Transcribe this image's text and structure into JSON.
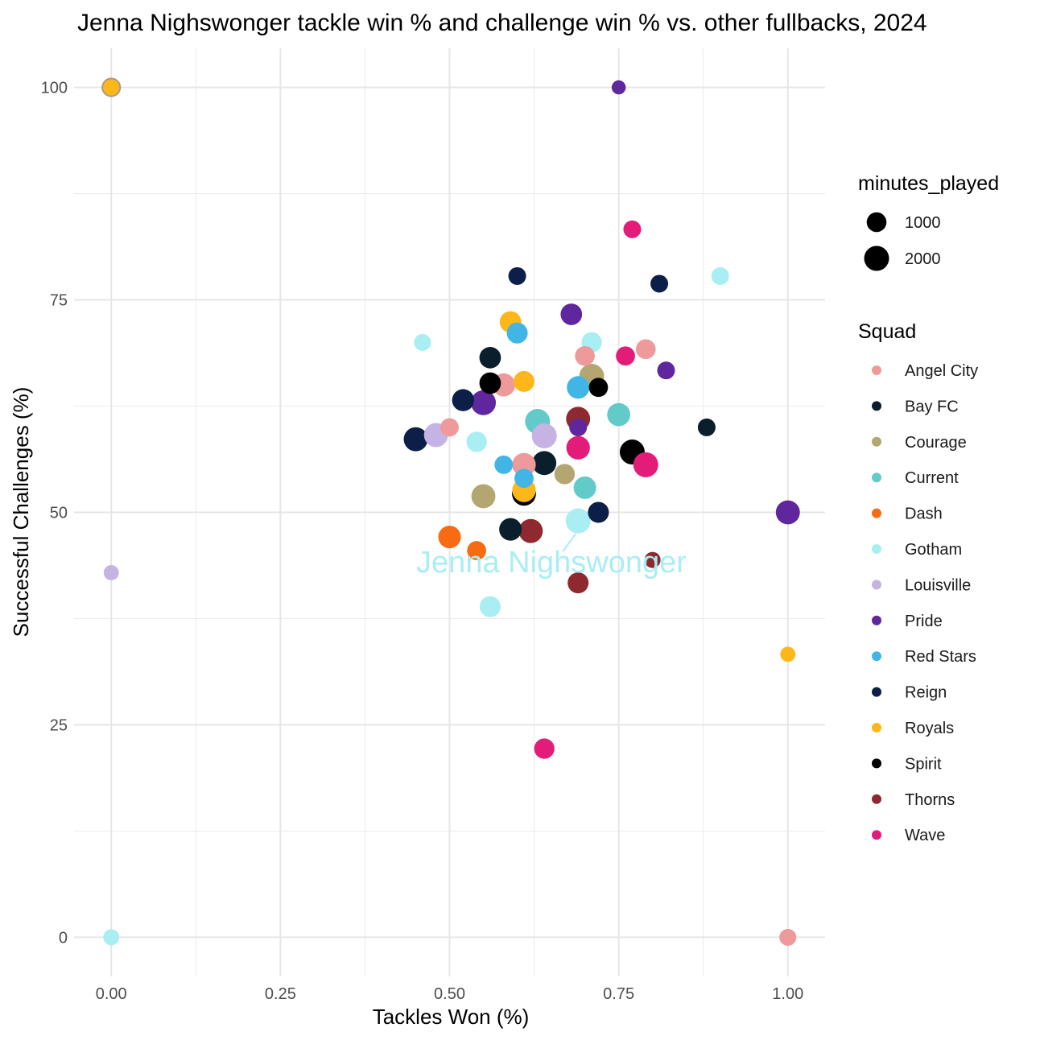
{
  "chart_data": {
    "type": "scatter",
    "title": "Jenna Nighswonger tackle win % and challenge win % vs. other fullbacks, 2024",
    "xlabel": "Tackles Won (%)",
    "ylabel": "Successful Challenges (%)",
    "xlim": [
      -0.055,
      1.055
    ],
    "ylim": [
      -4.6,
      104.6
    ],
    "x_ticks": [
      0.0,
      0.25,
      0.5,
      0.75,
      1.0
    ],
    "x_tick_labels": [
      "0.00",
      "0.25",
      "0.50",
      "0.75",
      "1.00"
    ],
    "y_ticks": [
      0,
      25,
      50,
      75,
      100
    ],
    "y_tick_labels": [
      "0",
      "25",
      "50",
      "75",
      "100"
    ],
    "grid": true,
    "size_legend": {
      "title": "minutes_played",
      "entries": [
        {
          "label": "1000",
          "value": 1000
        },
        {
          "label": "2000",
          "value": 2000
        }
      ]
    },
    "color_legend": {
      "title": "Squad",
      "entries": [
        {
          "label": "Angel City",
          "color": "#EF9A9A"
        },
        {
          "label": "Bay FC",
          "color": "#0A1E2C"
        },
        {
          "label": "Courage",
          "color": "#B4A670"
        },
        {
          "label": "Current",
          "color": "#62CBC9"
        },
        {
          "label": "Dash",
          "color": "#F86B12"
        },
        {
          "label": "Gotham",
          "color": "#A8EEF3"
        },
        {
          "label": "Louisville",
          "color": "#C5B3E3"
        },
        {
          "label": "Pride",
          "color": "#60269E"
        },
        {
          "label": "Red Stars",
          "color": "#41B6E6"
        },
        {
          "label": "Reign",
          "color": "#0D1F48"
        },
        {
          "label": "Royals",
          "color": "#FDB71A"
        },
        {
          "label": "Spirit",
          "color": "#000000"
        },
        {
          "label": "Thorns",
          "color": "#8E2A2F"
        },
        {
          "label": "Wave",
          "color": "#E31C79"
        }
      ]
    },
    "annotation": {
      "text": "Jenna Nighswonger",
      "color": "#A8EEF3",
      "point": {
        "x": 0.69,
        "y": 49
      }
    },
    "points": [
      {
        "squad": "Royals",
        "x": 0.0,
        "y": 100,
        "minutes": 700
      },
      {
        "squad": "Pride",
        "x": 0.75,
        "y": 100,
        "minutes": 300
      },
      {
        "squad": "Wave",
        "x": 0.77,
        "y": 83.3,
        "minutes": 700
      },
      {
        "squad": "Reign",
        "x": 0.6,
        "y": 77.8,
        "minutes": 700
      },
      {
        "squad": "Reign",
        "x": 0.81,
        "y": 76.9,
        "minutes": 700
      },
      {
        "squad": "Gotham",
        "x": 0.9,
        "y": 77.8,
        "minutes": 700
      },
      {
        "squad": "Pride",
        "x": 0.68,
        "y": 73.3,
        "minutes": 1300
      },
      {
        "squad": "Royals",
        "x": 0.59,
        "y": 72.4,
        "minutes": 1300
      },
      {
        "squad": "Red Stars",
        "x": 0.6,
        "y": 71.1,
        "minutes": 1200
      },
      {
        "squad": "Gotham",
        "x": 0.46,
        "y": 70.0,
        "minutes": 600
      },
      {
        "squad": "Gotham",
        "x": 0.71,
        "y": 70.0,
        "minutes": 1100
      },
      {
        "squad": "Angel City",
        "x": 0.79,
        "y": 69.2,
        "minutes": 1000
      },
      {
        "squad": "Angel City",
        "x": 0.7,
        "y": 68.4,
        "minutes": 1000
      },
      {
        "squad": "Wave",
        "x": 0.76,
        "y": 68.4,
        "minutes": 900
      },
      {
        "squad": "Bay FC",
        "x": 0.56,
        "y": 68.2,
        "minutes": 1300
      },
      {
        "squad": "Pride",
        "x": 0.82,
        "y": 66.7,
        "minutes": 700
      },
      {
        "squad": "Courage",
        "x": 0.71,
        "y": 66.0,
        "minutes": 2000
      },
      {
        "squad": "Spirit",
        "x": 0.72,
        "y": 64.7,
        "minutes": 900
      },
      {
        "squad": "Angel City",
        "x": 0.58,
        "y": 65.0,
        "minutes": 1600
      },
      {
        "squad": "Spirit",
        "x": 0.56,
        "y": 65.2,
        "minutes": 1300
      },
      {
        "squad": "Royals",
        "x": 0.61,
        "y": 65.4,
        "minutes": 1200
      },
      {
        "squad": "Red Stars",
        "x": 0.69,
        "y": 64.7,
        "minutes": 1500
      },
      {
        "squad": "Reign",
        "x": 0.52,
        "y": 63.2,
        "minutes": 1400
      },
      {
        "squad": "Pride",
        "x": 0.55,
        "y": 62.9,
        "minutes": 2000
      },
      {
        "squad": "Current",
        "x": 0.75,
        "y": 61.5,
        "minutes": 1600
      },
      {
        "squad": "Current",
        "x": 0.63,
        "y": 60.7,
        "minutes": 2000
      },
      {
        "squad": "Thorns",
        "x": 0.69,
        "y": 61.0,
        "minutes": 1800
      },
      {
        "squad": "Bay FC",
        "x": 0.88,
        "y": 60.0,
        "minutes": 700
      },
      {
        "squad": "Pride",
        "x": 0.69,
        "y": 60.0,
        "minutes": 700
      },
      {
        "squad": "Angel City",
        "x": 0.5,
        "y": 60.0,
        "minutes": 800
      },
      {
        "squad": "Reign",
        "x": 0.45,
        "y": 58.6,
        "minutes": 1800
      },
      {
        "squad": "Louisville",
        "x": 0.48,
        "y": 59.1,
        "minutes": 1800
      },
      {
        "squad": "Louisville",
        "x": 0.64,
        "y": 59.0,
        "minutes": 2000
      },
      {
        "squad": "Gotham",
        "x": 0.54,
        "y": 58.3,
        "minutes": 1100
      },
      {
        "squad": "Wave",
        "x": 0.69,
        "y": 57.6,
        "minutes": 1700
      },
      {
        "squad": "Spirit",
        "x": 0.77,
        "y": 57.1,
        "minutes": 2000
      },
      {
        "squad": "Wave",
        "x": 0.79,
        "y": 55.6,
        "minutes": 2000
      },
      {
        "squad": "Bay FC",
        "x": 0.64,
        "y": 55.8,
        "minutes": 1800
      },
      {
        "squad": "Angel City",
        "x": 0.61,
        "y": 55.6,
        "minutes": 1700
      },
      {
        "squad": "Red Stars",
        "x": 0.58,
        "y": 55.6,
        "minutes": 800
      },
      {
        "squad": "Courage",
        "x": 0.67,
        "y": 54.5,
        "minutes": 1100
      },
      {
        "squad": "Red Stars",
        "x": 0.61,
        "y": 54.0,
        "minutes": 900
      },
      {
        "squad": "Current",
        "x": 0.7,
        "y": 52.9,
        "minutes": 1500
      },
      {
        "squad": "Spirit",
        "x": 0.61,
        "y": 52.2,
        "minutes": 1800
      },
      {
        "squad": "Royals",
        "x": 0.61,
        "y": 52.6,
        "minutes": 1700
      },
      {
        "squad": "Courage",
        "x": 0.55,
        "y": 51.9,
        "minutes": 1800
      },
      {
        "squad": "Reign",
        "x": 0.72,
        "y": 50.0,
        "minutes": 1200
      },
      {
        "squad": "Pride",
        "x": 1.0,
        "y": 50.0,
        "minutes": 1800
      },
      {
        "squad": "Gotham",
        "x": 0.69,
        "y": 49.0,
        "minutes": 2000
      },
      {
        "squad": "Bay FC",
        "x": 0.59,
        "y": 48.0,
        "minutes": 1500
      },
      {
        "squad": "Thorns",
        "x": 0.62,
        "y": 47.8,
        "minutes": 1800
      },
      {
        "squad": "Dash",
        "x": 0.5,
        "y": 47.1,
        "minutes": 1500
      },
      {
        "squad": "Dash",
        "x": 0.54,
        "y": 45.5,
        "minutes": 900
      },
      {
        "squad": "Thorns",
        "x": 0.8,
        "y": 44.4,
        "minutes": 500
      },
      {
        "squad": "Louisville",
        "x": 0.0,
        "y": 42.9,
        "minutes": 400
      },
      {
        "squad": "Thorns",
        "x": 0.69,
        "y": 41.7,
        "minutes": 1200
      },
      {
        "squad": "Gotham",
        "x": 0.56,
        "y": 38.9,
        "minutes": 1200
      },
      {
        "squad": "Royals",
        "x": 1.0,
        "y": 33.3,
        "minutes": 400
      },
      {
        "squad": "Wave",
        "x": 0.64,
        "y": 22.2,
        "minutes": 1100
      },
      {
        "squad": "Gotham",
        "x": 0.0,
        "y": 0.0,
        "minutes": 500
      },
      {
        "squad": "Angel City",
        "x": 1.0,
        "y": 0.0,
        "minutes": 600
      }
    ]
  }
}
